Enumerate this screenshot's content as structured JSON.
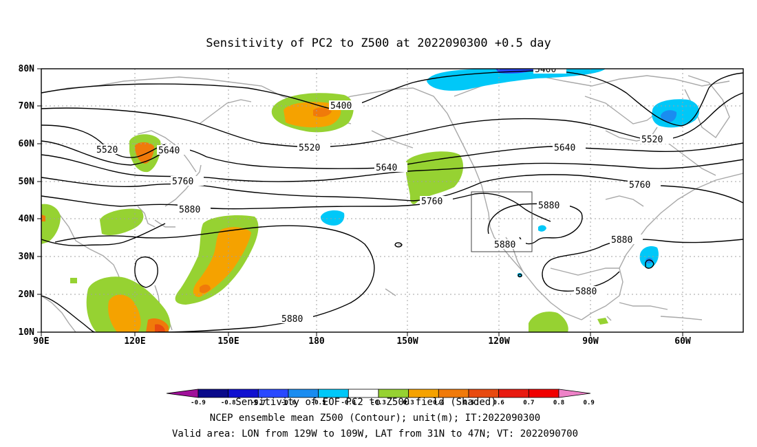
{
  "title": "Sensitivity of PC2 to Z500 at 2022090300 +0.5 day",
  "lat_labels": [
    "80N",
    "70N",
    "60N",
    "50N",
    "40N",
    "30N",
    "20N",
    "10N"
  ],
  "lon_labels": [
    "90E",
    "120E",
    "150E",
    "180",
    "150W",
    "120W",
    "90W",
    "60W"
  ],
  "contours": [
    {
      "label": "5400"
    },
    {
      "label": "5520"
    },
    {
      "label": "5640"
    },
    {
      "label": "5760"
    },
    {
      "label": "5880"
    }
  ],
  "colorbar": {
    "labels": [
      "-0.9",
      "-0.8",
      "-0.7",
      "-0.6",
      "-0.5",
      "-0.4",
      "-0.3",
      "0.3",
      "0.4",
      "0.5",
      "0.6",
      "0.7",
      "0.8",
      "0.9"
    ],
    "colors": [
      "#a0109a",
      "#0a0a8a",
      "#1010d0",
      "#2848ff",
      "#1a8cf0",
      "#00c8f8",
      "#ffffff",
      "#96d232",
      "#f5a200",
      "#f07a0a",
      "#e84a10",
      "#e81a10",
      "#f00000",
      "#ee82c8"
    ]
  },
  "shading_colors": {
    "green": "#96d232",
    "orange": "#f5a200",
    "red": "#e84a10",
    "cyan": "#00c8f8",
    "blue": "#1a8cf0",
    "deepblue": "#2040ff"
  },
  "valid_area": {
    "lon_from": "129W",
    "lon_to": "109W",
    "lat_from": "31N",
    "lat_to": "47N"
  },
  "captions": {
    "line1": "Sensitivity of EOF PC2 to Z500 field (Shaded)",
    "line2": "NCEP ensemble mean Z500 (Contour); unit(m); IT:2022090300",
    "line3": "Valid area: LON from 129W to 109W, LAT from 31N to 47N; VT: 2022090700"
  }
}
